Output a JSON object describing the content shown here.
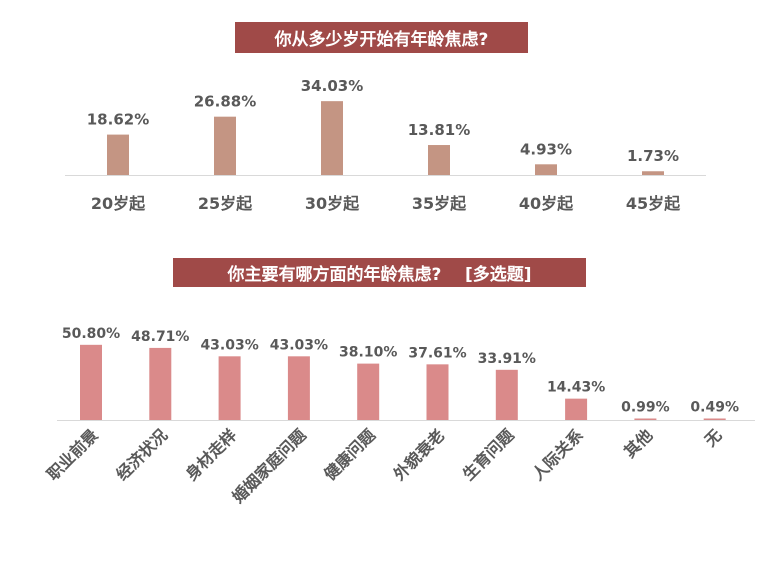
{
  "chart_data": [
    {
      "type": "bar",
      "title": "你从多少岁开始有年龄焦虑?",
      "categories": [
        "20岁起",
        "25岁起",
        "30岁起",
        "35岁起",
        "40岁起",
        "45岁起"
      ],
      "values": [
        18.62,
        26.88,
        34.03,
        13.81,
        4.93,
        1.73
      ],
      "labels": [
        "18.62%",
        "26.88%",
        "34.03%",
        "13.81%",
        "4.93%",
        "1.73%"
      ],
      "unit": "%",
      "grid": false,
      "bar_color": "#C49583"
    },
    {
      "type": "bar",
      "title": "你主要有哪方面的年龄焦虑?    [多选题]",
      "categories": [
        "职业前景",
        "经济状况",
        "身材走样",
        "婚姻家庭问题",
        "健康问题",
        "外貌衰老",
        "生育问题",
        "人际关系",
        "其他",
        "无"
      ],
      "values": [
        50.8,
        48.71,
        43.03,
        43.03,
        38.1,
        37.61,
        33.91,
        14.43,
        0.99,
        0.49
      ],
      "labels": [
        "50.80%",
        "48.71%",
        "43.03%",
        "43.03%",
        "38.10%",
        "37.61%",
        "33.91%",
        "14.43%",
        "0.99%",
        "0.49%"
      ],
      "unit": "%",
      "grid": false,
      "bar_color": "#DA8A8A"
    }
  ],
  "colors": {
    "title_bg": "#A04A48",
    "text": "#595959",
    "axis": "#D9D9D9"
  }
}
